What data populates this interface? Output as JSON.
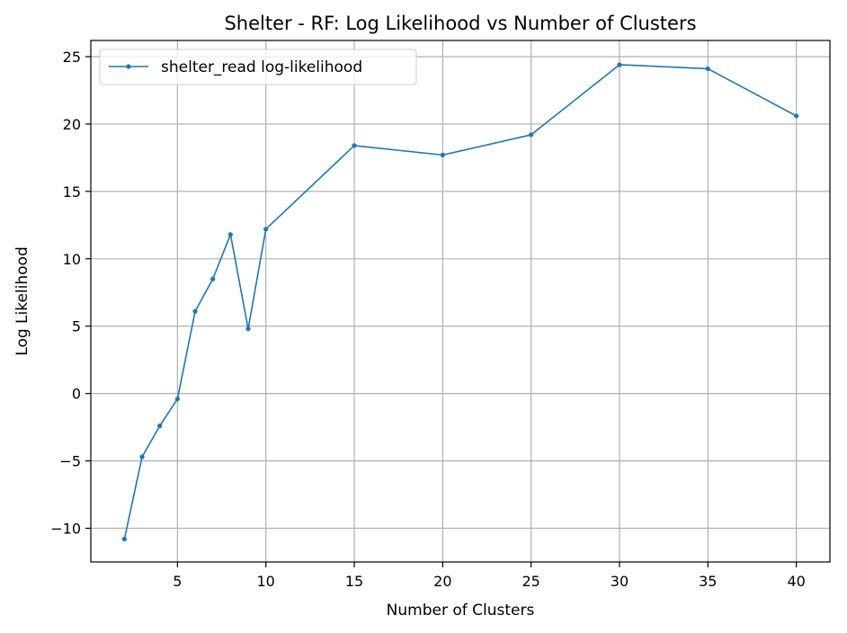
{
  "chart_data": {
    "type": "line",
    "title": "Shelter - RF: Log Likelihood vs Number of Clusters",
    "xlabel": "Number of Clusters",
    "ylabel": "Log Likelihood",
    "xlim": [
      0.1,
      41.9
    ],
    "ylim": [
      -12.5,
      26.2
    ],
    "xticks": [
      5,
      10,
      15,
      20,
      25,
      30,
      35,
      40
    ],
    "yticks": [
      -10,
      -5,
      0,
      5,
      10,
      15,
      20,
      25
    ],
    "grid": true,
    "legend_position": "top-left",
    "series": [
      {
        "name": "shelter_read log-likelihood",
        "color": "#1f77b4",
        "marker": "circle",
        "x": [
          2,
          3,
          4,
          5,
          6,
          7,
          8,
          9,
          10,
          15,
          20,
          25,
          30,
          35,
          40
        ],
        "y": [
          -10.8,
          -4.7,
          -2.4,
          -0.4,
          6.1,
          8.5,
          11.8,
          4.8,
          12.2,
          18.4,
          17.7,
          19.2,
          24.4,
          24.1,
          20.6
        ]
      }
    ]
  }
}
